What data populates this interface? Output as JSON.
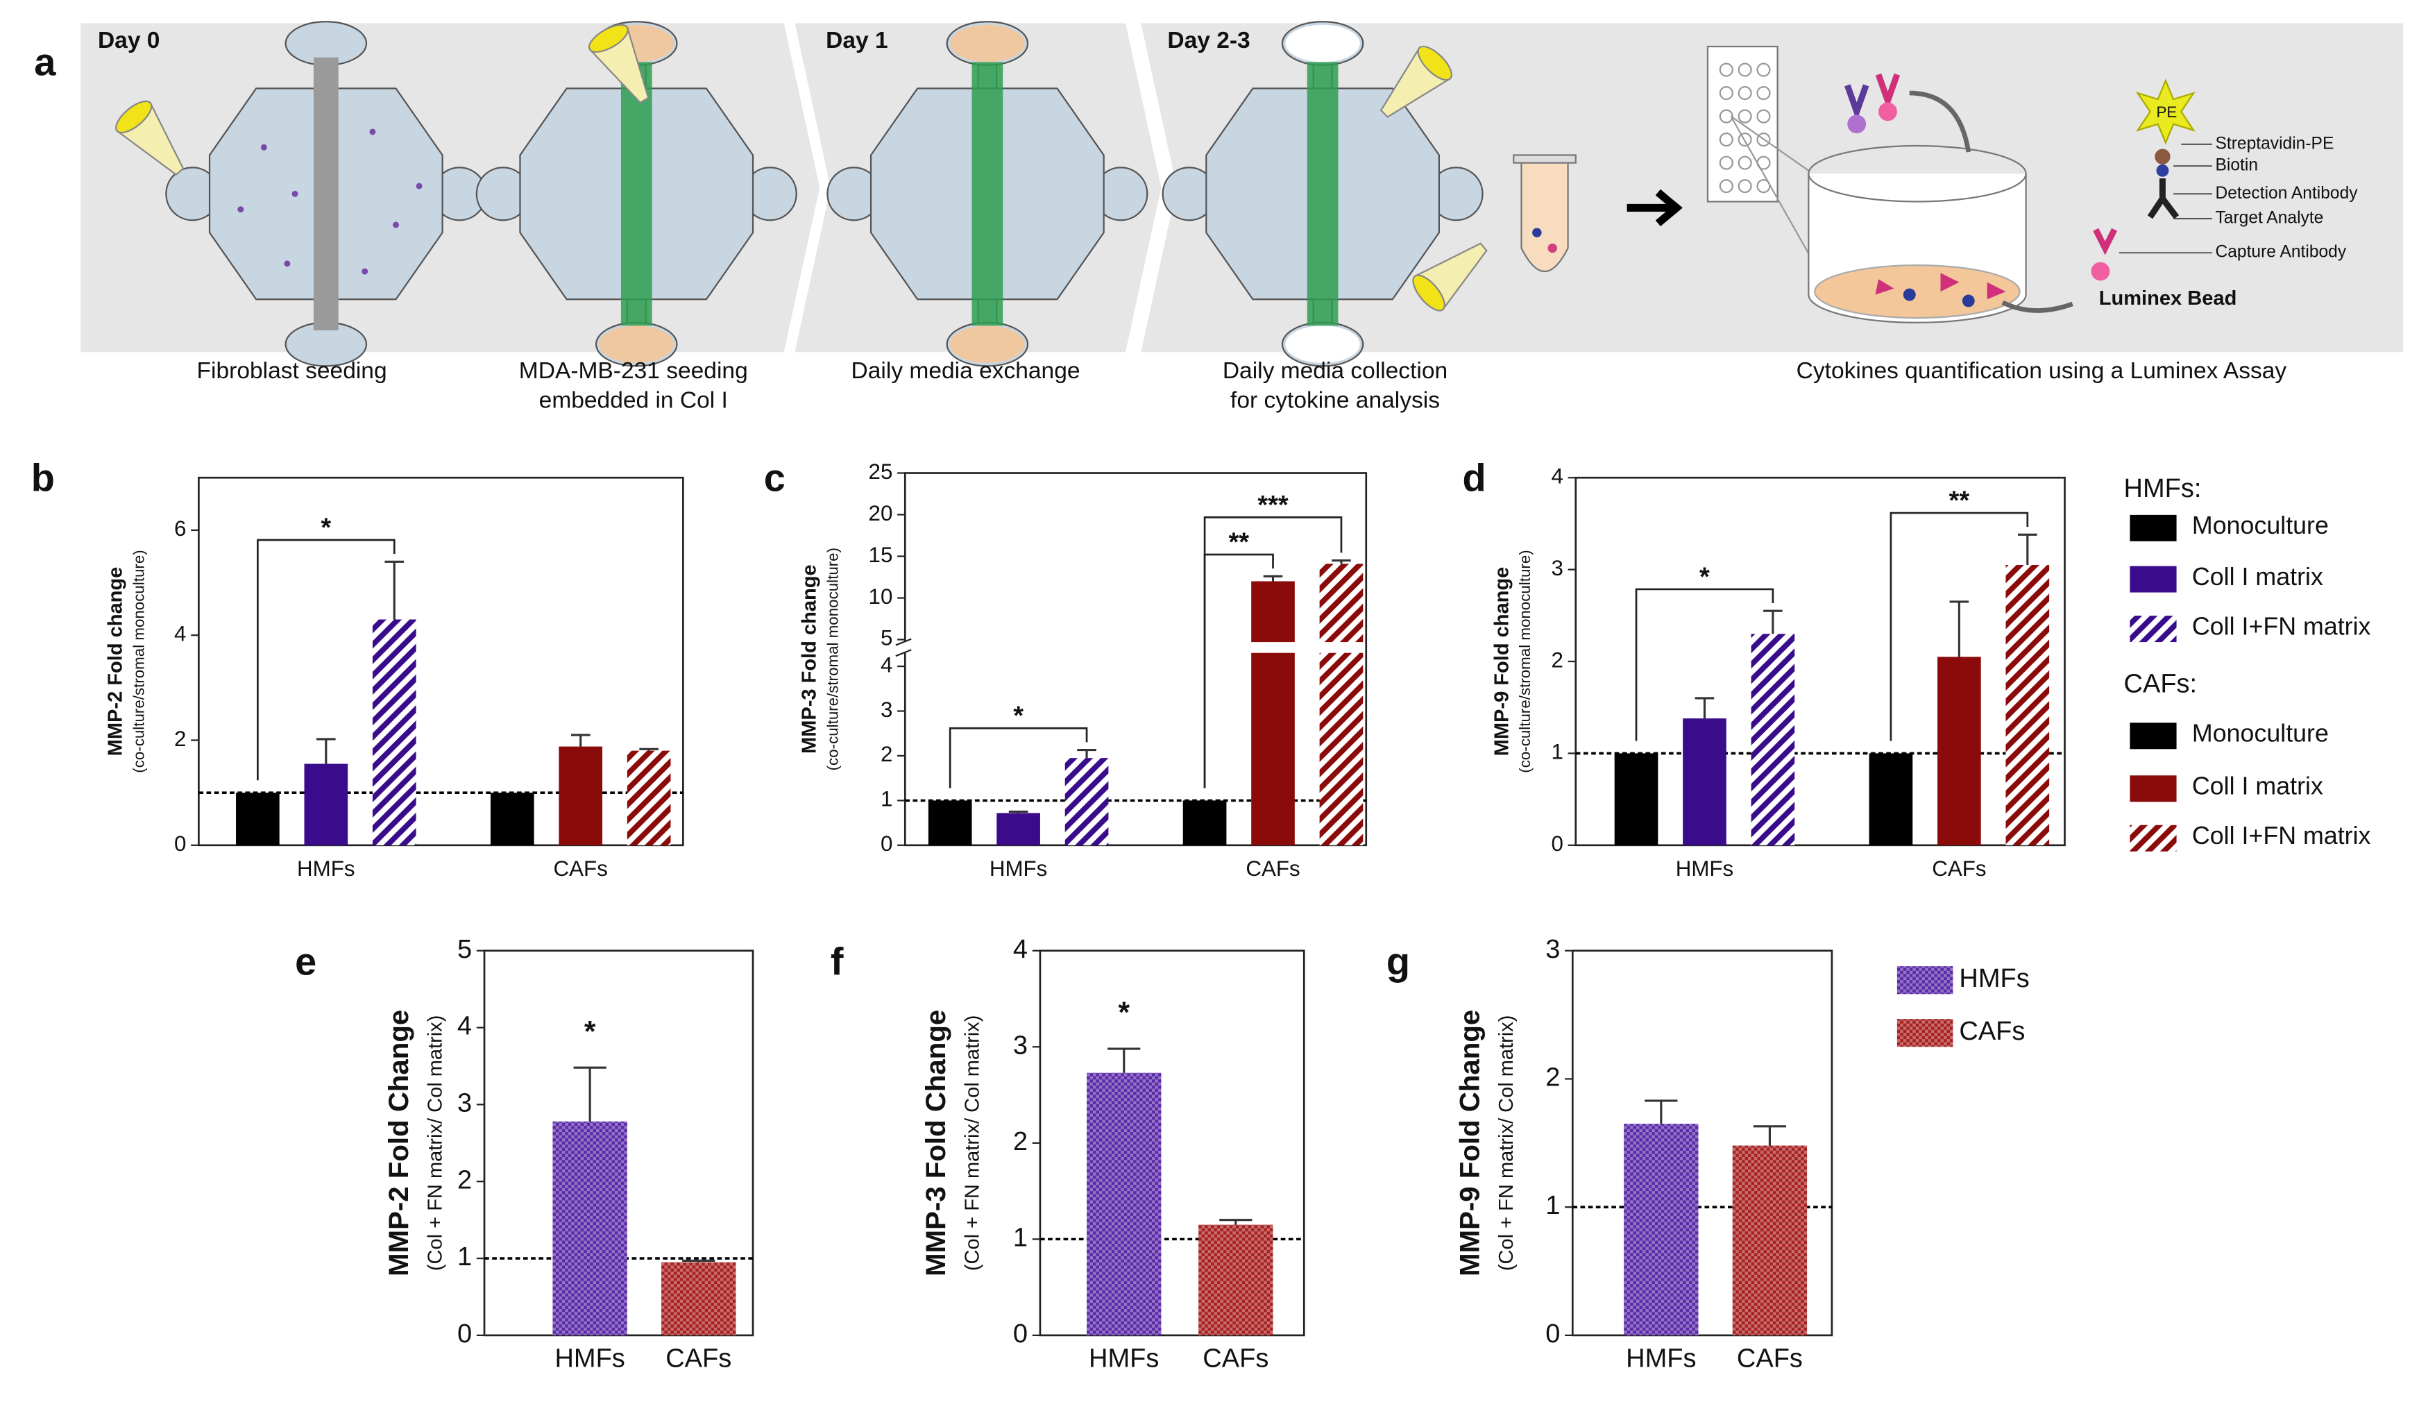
{
  "panel_labels": [
    "a",
    "b",
    "c",
    "d",
    "e",
    "f",
    "g"
  ],
  "schematic": {
    "days": [
      "Day 0",
      "Day 1",
      "Day 2-3"
    ],
    "captions": [
      [
        "Fibroblast seeding"
      ],
      [
        "MDA-MB-231 seeding",
        "embedded in Col I"
      ],
      [
        "Daily media exchange"
      ],
      [
        "Daily media collection",
        "for cytokine analysis"
      ],
      [
        "Cytokines quantification using a Luminex Assay"
      ]
    ],
    "assay_labels": [
      "PE",
      "Streptavidin-PE",
      "Biotin",
      "Detection Antibody",
      "Target Analyte",
      "Capture Antibody",
      "Luminex Bead"
    ]
  },
  "legends": [
    {
      "title": "HMFs:",
      "items": [
        {
          "name": "Monoculture",
          "color": "#000000",
          "pattern": "solid"
        },
        {
          "name": "Coll I matrix",
          "color": "#3a0b8a",
          "pattern": "solid"
        },
        {
          "name": "Coll I+FN matrix",
          "color": "#3a0b8a",
          "pattern": "hatch"
        }
      ]
    },
    {
      "title": "CAFs:",
      "items": [
        {
          "name": "Monoculture",
          "color": "#000000",
          "pattern": "solid"
        },
        {
          "name": "Coll I matrix",
          "color": "#8b0a0a",
          "pattern": "solid"
        },
        {
          "name": "Coll I+FN matrix",
          "color": "#8b0a0a",
          "pattern": "hatch"
        }
      ]
    }
  ],
  "legend2": [
    {
      "name": "HMFs",
      "color": "#5a2aa8",
      "pattern": "checker"
    },
    {
      "name": "CAFs",
      "color": "#a82020",
      "pattern": "checker"
    }
  ],
  "chart_data": [
    {
      "type": "grouped_bar",
      "ylabel": "MMP-2 Fold change",
      "ylabel_sub": "(co-culture/stromal monoculture)",
      "categories": [
        "HMFs",
        "CAFs"
      ],
      "series": [
        {
          "values": [
            1,
            1
          ]
        },
        {
          "values": [
            1.55,
            1.88
          ],
          "errors": [
            0.47,
            0.22
          ]
        },
        {
          "values": [
            4.3,
            1.8
          ],
          "errors": [
            1.1,
            0.03
          ]
        }
      ],
      "ylim": [
        0,
        7
      ],
      "yticks": [
        0,
        2,
        4,
        6
      ],
      "reference_line": 1,
      "annotations": [
        {
          "text": "*",
          "category": 0,
          "bars": [
            0,
            2
          ]
        }
      ]
    },
    {
      "type": "grouped_bar",
      "ylabel": "MMP-3 Fold change",
      "ylabel_sub": "(co-culture/stromal monoculture)",
      "categories": [
        "HMFs",
        "CAFs"
      ],
      "series": [
        {
          "values": [
            1,
            1
          ]
        },
        {
          "values": [
            0.72,
            12
          ],
          "errors": [
            0.03,
            0.6
          ]
        },
        {
          "values": [
            1.95,
            14.1
          ],
          "errors": [
            0.18,
            0.4
          ]
        }
      ],
      "ylim": [
        0,
        25
      ],
      "yticks": [
        0,
        1,
        2,
        3,
        4,
        5,
        10,
        15,
        20,
        25
      ],
      "axis_break": [
        4.3,
        4.7
      ],
      "reference_line": 1,
      "annotations": [
        {
          "text": "*",
          "category": 0,
          "bars": [
            0,
            2
          ]
        },
        {
          "text": "**",
          "category": 1,
          "bars": [
            0,
            1
          ]
        },
        {
          "text": "***",
          "category": 1,
          "bars": [
            0,
            2
          ]
        }
      ]
    },
    {
      "type": "grouped_bar",
      "ylabel": "MMP-9 Fold change",
      "ylabel_sub": "(co-culture/stromal monoculture)",
      "categories": [
        "HMFs",
        "CAFs"
      ],
      "series": [
        {
          "values": [
            1,
            1
          ]
        },
        {
          "values": [
            1.38,
            2.05
          ],
          "errors": [
            0.22,
            0.6
          ]
        },
        {
          "values": [
            2.3,
            3.05
          ],
          "errors": [
            0.25,
            0.33
          ]
        }
      ],
      "ylim": [
        0,
        4
      ],
      "yticks": [
        0,
        1,
        2,
        3,
        4
      ],
      "reference_line": 1,
      "annotations": [
        {
          "text": "*",
          "category": 0,
          "bars": [
            0,
            2
          ]
        },
        {
          "text": "**",
          "category": 1,
          "bars": [
            0,
            2
          ]
        }
      ]
    },
    {
      "type": "bar",
      "ylabel": "MMP-2 Fold Change",
      "ylabel_sub": "(Col + FN matrix/ Col matrix)",
      "categories": [
        "HMFs",
        "CAFs"
      ],
      "values": [
        2.78,
        0.95
      ],
      "errors": [
        0.7,
        0.02
      ],
      "ylim": [
        0,
        5
      ],
      "yticks": [
        0,
        1,
        2,
        3,
        4,
        5
      ],
      "reference_line": 1,
      "annotations": [
        {
          "text": "*",
          "category": 0
        }
      ]
    },
    {
      "type": "bar",
      "ylabel": "MMP-3 Fold Change",
      "ylabel_sub": "(Col + FN matrix/ Col matrix)",
      "categories": [
        "HMFs",
        "CAFs"
      ],
      "values": [
        2.73,
        1.15
      ],
      "errors": [
        0.25,
        0.05
      ],
      "ylim": [
        0,
        4
      ],
      "yticks": [
        0,
        1,
        2,
        3,
        4
      ],
      "reference_line": 1,
      "annotations": [
        {
          "text": "*",
          "category": 0
        }
      ]
    },
    {
      "type": "bar",
      "ylabel": "MMP-9 Fold Change",
      "ylabel_sub": "(Col + FN matrix/ Col matrix)",
      "categories": [
        "HMFs",
        "CAFs"
      ],
      "values": [
        1.65,
        1.48
      ],
      "errors": [
        0.18,
        0.15
      ],
      "ylim": [
        0,
        3
      ],
      "yticks": [
        0,
        1,
        2,
        3
      ],
      "reference_line": 1,
      "annotations": []
    }
  ]
}
